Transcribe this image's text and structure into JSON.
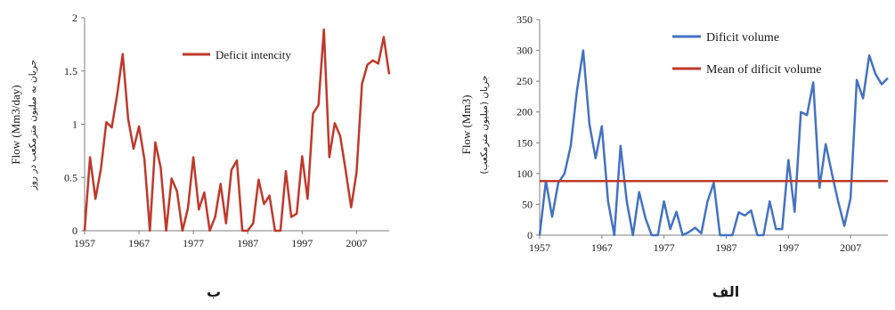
{
  "chart_data": [
    {
      "type": "line",
      "panel_label": "ب",
      "ylabel": "Flow (Mm3/day)",
      "ylabel_fa": "جریان به میلیون مترمکعب در روز",
      "xlim": [
        1957,
        2013
      ],
      "ylim": [
        0,
        2
      ],
      "x_ticks": [
        "1957",
        "1967",
        "1977",
        "1987",
        "1997",
        "2007"
      ],
      "y_ticks": [
        "0",
        "0.5",
        "1",
        "1.5",
        "2"
      ],
      "legend_position": "top-right",
      "grid": false,
      "series": [
        {
          "name": "Deficit intencity",
          "color": "#C0392B",
          "x": [
            1957,
            1958,
            1959,
            1960,
            1961,
            1962,
            1963,
            1964,
            1965,
            1966,
            1967,
            1968,
            1969,
            1970,
            1971,
            1972,
            1973,
            1974,
            1975,
            1976,
            1977,
            1978,
            1979,
            1980,
            1981,
            1982,
            1983,
            1984,
            1985,
            1986,
            1987,
            1988,
            1989,
            1990,
            1991,
            1992,
            1993,
            1994,
            1995,
            1996,
            1997,
            1998,
            1999,
            2000,
            2001,
            2002,
            2003,
            2004,
            2005,
            2006,
            2007,
            2008,
            2009,
            2010,
            2011,
            2012,
            2013
          ],
          "y": [
            0,
            0.69,
            0.3,
            0.58,
            1.02,
            0.97,
            1.28,
            1.66,
            1.05,
            0.77,
            0.98,
            0.67,
            0,
            0.83,
            0.59,
            0,
            0.49,
            0.37,
            0,
            0.21,
            0.69,
            0.2,
            0.36,
            0,
            0.13,
            0.44,
            0.07,
            0.57,
            0.66,
            0,
            0,
            0.07,
            0.48,
            0.25,
            0.33,
            0,
            0,
            0.56,
            0.13,
            0.16,
            0.7,
            0.3,
            1.1,
            1.18,
            1.89,
            0.69,
            1.01,
            0.89,
            0.57,
            0.22,
            0.55,
            1.38,
            1.56,
            1.6,
            1.57,
            1.82,
            1.47
          ]
        }
      ]
    },
    {
      "type": "line",
      "panel_label": "الف",
      "ylabel": "Flow (Mm3)",
      "ylabel_fa": "جریان (میلیون مترمکعب)",
      "xlim": [
        1957,
        2013
      ],
      "ylim": [
        0,
        350
      ],
      "x_ticks": [
        "1957",
        "1967",
        "1977",
        "1987",
        "1997",
        "2007"
      ],
      "y_ticks": [
        "0",
        "50",
        "100",
        "150",
        "200",
        "250",
        "300",
        "350"
      ],
      "legend_position": "top-right",
      "grid": false,
      "series": [
        {
          "name": "Dificit volume",
          "color": "#4472C4",
          "x": [
            1957,
            1958,
            1959,
            1960,
            1961,
            1962,
            1963,
            1964,
            1965,
            1966,
            1967,
            1968,
            1969,
            1970,
            1971,
            1972,
            1973,
            1974,
            1975,
            1976,
            1977,
            1978,
            1979,
            1980,
            1981,
            1982,
            1983,
            1984,
            1985,
            1986,
            1987,
            1988,
            1989,
            1990,
            1991,
            1992,
            1993,
            1994,
            1995,
            1996,
            1997,
            1998,
            1999,
            2000,
            2001,
            2002,
            2003,
            2004,
            2005,
            2006,
            2007,
            2008,
            2009,
            2010,
            2011,
            2012,
            2013
          ],
          "y": [
            0,
            88,
            30,
            85,
            100,
            145,
            235,
            300,
            180,
            125,
            177,
            55,
            0,
            145,
            55,
            0,
            70,
            28,
            0,
            0,
            55,
            10,
            38,
            0,
            5,
            12,
            3,
            55,
            85,
            0,
            0,
            0,
            37,
            32,
            40,
            0,
            0,
            55,
            10,
            10,
            122,
            38,
            200,
            195,
            248,
            77,
            148,
            100,
            55,
            15,
            60,
            252,
            222,
            292,
            262,
            245,
            255
          ]
        },
        {
          "name": "Mean of dificit volume",
          "color": "#C0392B",
          "x": [
            1957,
            2013
          ],
          "y": [
            88,
            88
          ]
        }
      ]
    }
  ]
}
